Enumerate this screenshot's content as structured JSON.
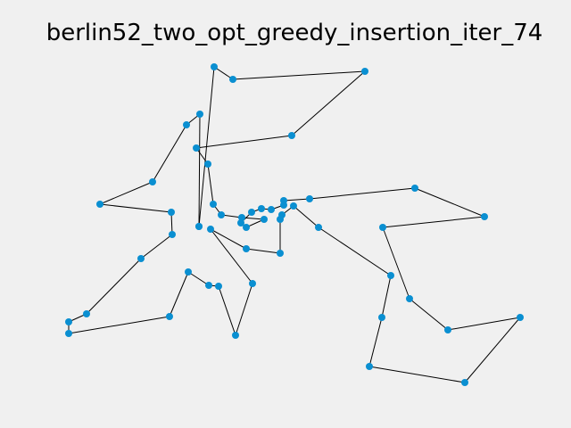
{
  "chart_data": {
    "type": "line",
    "title": "berlin52_two_opt_greedy_insertion_iter_74",
    "xlabel": "",
    "ylabel": "",
    "axes_visible": false,
    "grid": false,
    "line_color": "#000000",
    "marker_color": "#0a8fd1",
    "route_closed": true,
    "route": [
      [
        240,
        75
      ],
      [
        261,
        89
      ],
      [
        409,
        80
      ],
      [
        327,
        152
      ],
      [
        220,
        166
      ],
      [
        233,
        184
      ],
      [
        239,
        229
      ],
      [
        248,
        241
      ],
      [
        271,
        244
      ],
      [
        296,
        246
      ],
      [
        276,
        255
      ],
      [
        270,
        250
      ],
      [
        282,
        238
      ],
      [
        293,
        234
      ],
      [
        304,
        235
      ],
      [
        318,
        230
      ],
      [
        318,
        225
      ],
      [
        347,
        223
      ],
      [
        465,
        211
      ],
      [
        543,
        243
      ],
      [
        429,
        255
      ],
      [
        459,
        335
      ],
      [
        502,
        370
      ],
      [
        583,
        356
      ],
      [
        521,
        429
      ],
      [
        414,
        411
      ],
      [
        428,
        356
      ],
      [
        438,
        309
      ],
      [
        357,
        255
      ],
      [
        329,
        231
      ],
      [
        316,
        241
      ],
      [
        314,
        246
      ],
      [
        314,
        284
      ],
      [
        276,
        279
      ],
      [
        236,
        257
      ],
      [
        283,
        318
      ],
      [
        264,
        376
      ],
      [
        245,
        321
      ],
      [
        234,
        320
      ],
      [
        211,
        305
      ],
      [
        190,
        355
      ],
      [
        77,
        374
      ],
      [
        77,
        361
      ],
      [
        97,
        352
      ],
      [
        158,
        290
      ],
      [
        193,
        263
      ],
      [
        192,
        238
      ],
      [
        112,
        229
      ],
      [
        171,
        204
      ],
      [
        209,
        140
      ],
      [
        224,
        128
      ],
      [
        223,
        254
      ]
    ],
    "extra_points": [
      [
        223,
        254
      ]
    ]
  }
}
